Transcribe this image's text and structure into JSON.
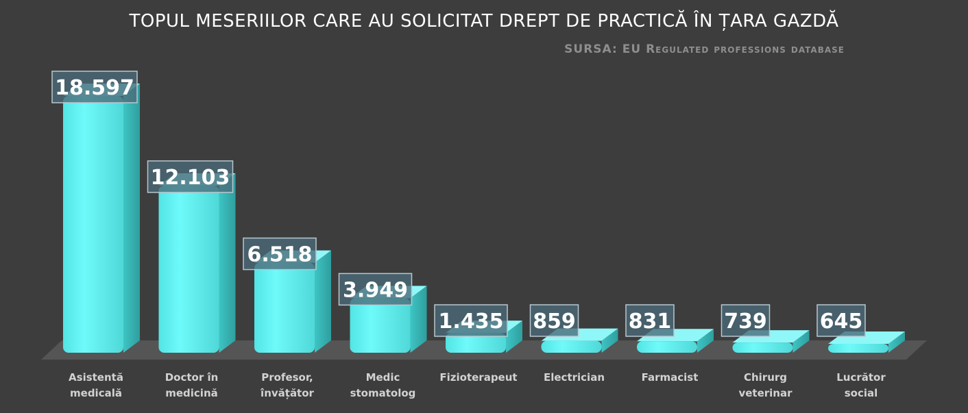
{
  "chart_data": {
    "type": "bar",
    "title": "TOPUL MESERIILOR CARE AU SOLICITAT DREPT DE PRACTICĂ ÎN ȚARA GAZDĂ",
    "subtitle": "SURSA: EU Regulated professions database",
    "categories": [
      [
        "Asistentă",
        "medicală"
      ],
      [
        "Doctor în",
        "medicină"
      ],
      [
        "Profesor,",
        "învățător"
      ],
      [
        "Medic",
        "stomatolog"
      ],
      [
        "Fizioterapeut"
      ],
      [
        "Electrician"
      ],
      [
        "Farmacist"
      ],
      [
        "Chirurg",
        "veterinar"
      ],
      [
        "Lucrător",
        "social"
      ]
    ],
    "values": [
      18597,
      12103,
      6518,
      3949,
      1435,
      859,
      831,
      739,
      645
    ],
    "data_labels": [
      "18.597",
      "12.103",
      "6.518",
      "3.949",
      "1.435",
      "859",
      "831",
      "739",
      "645"
    ],
    "xlabel": "",
    "ylabel": "",
    "ylim": [
      0,
      18597
    ],
    "grid": false,
    "legend": "none"
  },
  "colors": {
    "background": "#3d3d3d",
    "bar": "#5ff0f0",
    "bar_side": "#3fc6c6",
    "bar_top": "#8ff7f7",
    "floor": "#555555",
    "label_box": "#4a6a78"
  }
}
